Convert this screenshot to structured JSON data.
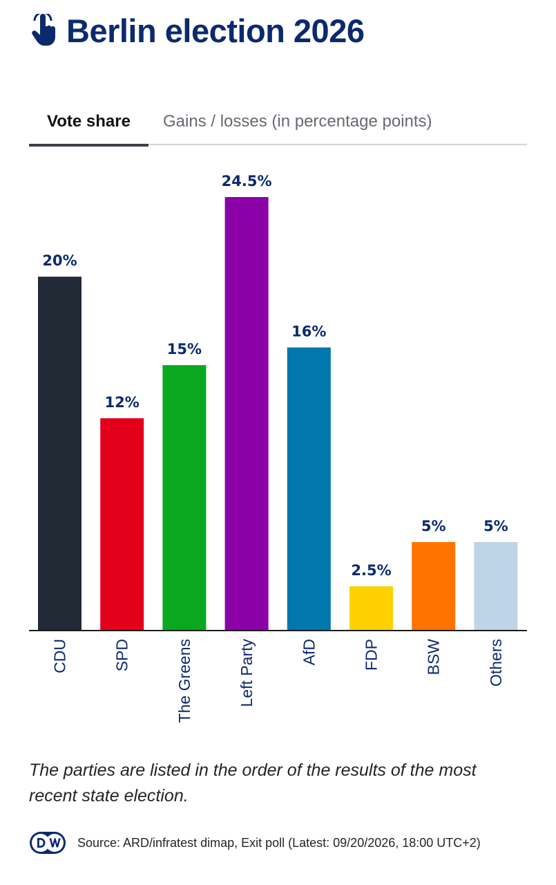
{
  "header": {
    "title": "Berlin election 2026",
    "icon": "hand-pointer-icon"
  },
  "tabs": [
    {
      "label": "Vote share",
      "active": true
    },
    {
      "label": "Gains / losses (in percentage points)",
      "active": false
    }
  ],
  "chart_data": {
    "type": "bar",
    "categories": [
      "CDU",
      "SPD",
      "The Greens",
      "Left Party",
      "AfD",
      "FDP",
      "BSW",
      "Others"
    ],
    "values": [
      20,
      12,
      15,
      24.5,
      16,
      2.5,
      5,
      5
    ],
    "value_labels": [
      "20%",
      "12%",
      "15%",
      "24.5%",
      "16%",
      "2.5%",
      "5%",
      "5%"
    ],
    "colors": [
      "#222a36",
      "#e2001a",
      "#0aa81e",
      "#8c00a8",
      "#0077ad",
      "#ffd100",
      "#ff7300",
      "#bed5e8"
    ],
    "ylim": [
      0,
      24.5
    ],
    "grid": false,
    "legend": "none"
  },
  "footnote": "The parties are listed in the order of the results of the most recent state election.",
  "source": {
    "logo": "DW",
    "text": "Source: ARD/infratest dimap, Exit poll (Latest: 09/20/2026, 18:00 UTC+2)"
  }
}
